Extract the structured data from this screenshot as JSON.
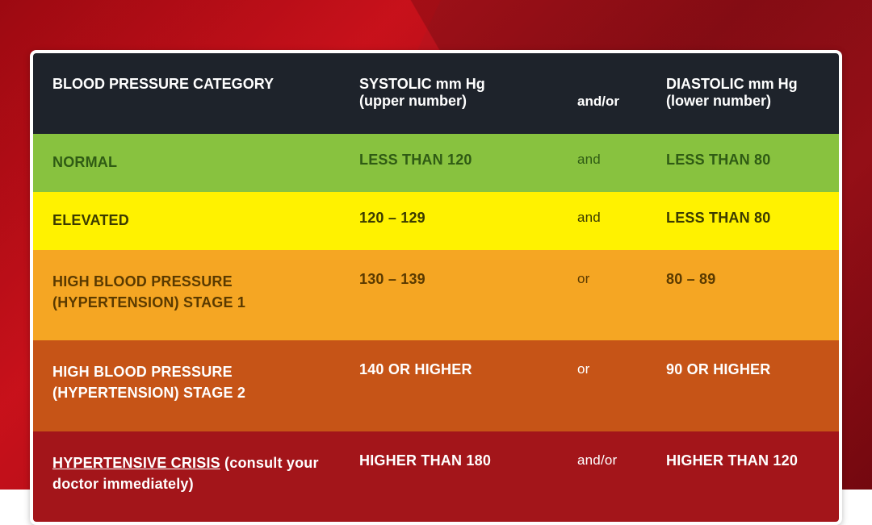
{
  "table": {
    "header": {
      "bg": "#1e232b",
      "text_color": "#ffffff",
      "category_label": "BLOOD PRESSURE CATEGORY",
      "systolic_label": "SYSTOLIC mm Hg",
      "systolic_sub": "(upper number)",
      "connector_label": "and/or",
      "diastolic_label": "DIASTOLIC mm Hg",
      "diastolic_sub": "(lower number)"
    },
    "rows": [
      {
        "bg": "#88c23f",
        "text_color": "#2f5b14",
        "category": "NORMAL",
        "systolic": "LESS THAN 120",
        "connector": "and",
        "diastolic": "LESS THAN 80",
        "tall": false
      },
      {
        "bg": "#fff200",
        "text_color": "#3b3b00",
        "category": "ELEVATED",
        "systolic": "120 – 129",
        "connector": "and",
        "diastolic": "LESS THAN 80",
        "tall": false
      },
      {
        "bg": "#f5a623",
        "text_color": "#5a3a00",
        "category": "HIGH BLOOD PRESSURE (HYPERTENSION) STAGE 1",
        "systolic": "130 – 139",
        "connector": "or",
        "diastolic": "80 – 89",
        "tall": true
      },
      {
        "bg": "#c65417",
        "text_color": "#ffffff",
        "category": "HIGH BLOOD PRESSURE (HYPERTENSION) STAGE 2",
        "systolic": "140 OR HIGHER",
        "connector": "or",
        "diastolic": "90 OR HIGHER",
        "tall": true
      },
      {
        "bg": "#a3151a",
        "text_color": "#ffffff",
        "category_strong": "HYPERTENSIVE CRISIS",
        "category_suffix": " (consult your doctor immediately)",
        "systolic": "HIGHER THAN 180",
        "connector": "and/or",
        "diastolic": "HIGHER THAN 120",
        "tall": true
      }
    ]
  },
  "background": {
    "page_bg_primary": "#a10f18"
  }
}
